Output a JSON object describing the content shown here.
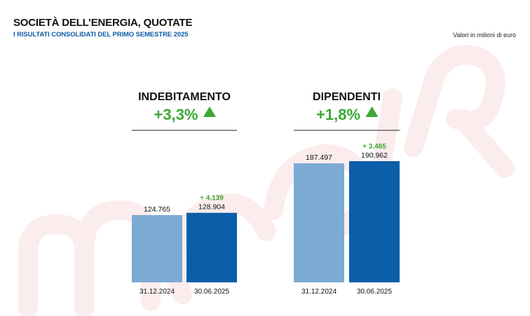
{
  "header": {
    "title": "SOCIETÀ DELL’ENERGIA, QUOTATE",
    "subtitle": "I RISULTATI CONSOLIDATI DEL PRIMO SEMESTRE 2025",
    "units": "Valori in milioni di euro"
  },
  "colors": {
    "bar_prev": "#7baad3",
    "bar_curr": "#0b5ea8",
    "positive": "#3aa935",
    "text": "#111111",
    "watermark": "#fbeaea"
  },
  "chart_data": [
    {
      "type": "bar",
      "title": "INDEBITAMENTO",
      "change_pct": "+3,3%",
      "trend_icon": "up-triangle-icon",
      "categories": [
        "31.12.2024",
        "30.06.2025"
      ],
      "values": [
        124765,
        128904
      ],
      "value_labels": [
        "124.765",
        "128.904"
      ],
      "delta_label": "+ 4.139",
      "ylim": [
        0,
        200000
      ]
    },
    {
      "type": "bar",
      "title": "DIPENDENTI",
      "change_pct": "+1,8%",
      "trend_icon": "up-triangle-icon",
      "categories": [
        "31.12.2024",
        "30.06.2025"
      ],
      "values": [
        187497,
        190962
      ],
      "value_labels": [
        "187.497",
        "190.962"
      ],
      "delta_label": "+ 3.465",
      "ylim": [
        0,
        200000
      ]
    }
  ]
}
